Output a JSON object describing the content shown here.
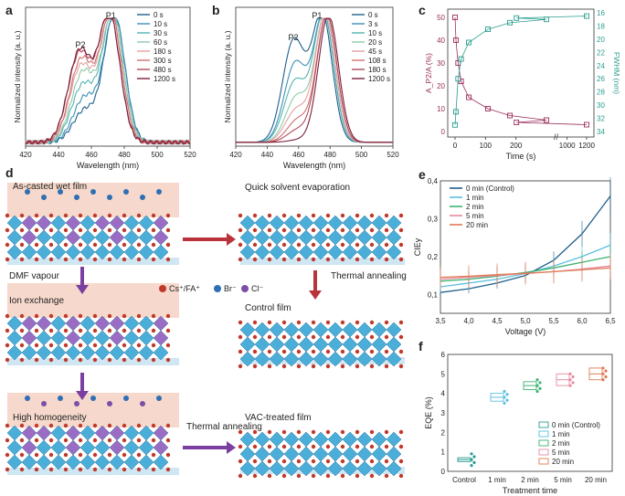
{
  "panel_labels": {
    "a": "a",
    "b": "b",
    "c": "c",
    "d": "d",
    "e": "e",
    "f": "f"
  },
  "colors": {
    "s0": "#1f5f8b",
    "s1": "#3a8fb7",
    "s2": "#55b3b0",
    "s3": "#8fc9a8",
    "s4": "#e5a0a0",
    "s5": "#d0706f",
    "s6": "#b04a5a",
    "s7": "#7a1f3d",
    "teal": "#2a9d8f",
    "maroon": "#9b2d5b",
    "cyan": "#5bc0de",
    "green": "#3cb371",
    "pink": "#e88aa0",
    "orange": "#e07b54"
  },
  "chart_data": [
    {
      "id": "a",
      "type": "line",
      "xlabel": "Wavelength (nm)",
      "ylabel": "Normalized intensity (a. u.)",
      "xlim": [
        420,
        520
      ],
      "xticks": [
        "420",
        "440",
        "460",
        "480",
        "500",
        "520"
      ],
      "annotations": [
        "P1",
        "P2"
      ],
      "series": [
        {
          "name": "0 s",
          "peak": 474,
          "shoulder": 0.25
        },
        {
          "name": "10 s",
          "peak": 474,
          "shoulder": 0.35
        },
        {
          "name": "30 s",
          "peak": 473,
          "shoulder": 0.45
        },
        {
          "name": "60 s",
          "peak": 473,
          "shoulder": 0.55
        },
        {
          "name": "180 s",
          "peak": 472,
          "shoulder": 0.6
        },
        {
          "name": "300 s",
          "peak": 472,
          "shoulder": 0.65
        },
        {
          "name": "480 s",
          "peak": 471,
          "shoulder": 0.7
        },
        {
          "name": "1200 s",
          "peak": 471,
          "shoulder": 0.72
        }
      ]
    },
    {
      "id": "b",
      "type": "line",
      "xlabel": "Wavelength (nm)",
      "ylabel": "Normalized intensity (a. u.)",
      "xlim": [
        420,
        520
      ],
      "xticks": [
        "420",
        "440",
        "460",
        "480",
        "500",
        "520"
      ],
      "annotations": [
        "P1",
        "P2"
      ],
      "series": [
        {
          "name": "0 s",
          "peak": 475,
          "shoulder": 0.8
        },
        {
          "name": "3 s",
          "peak": 476,
          "shoulder": 0.62
        },
        {
          "name": "10 s",
          "peak": 476,
          "shoulder": 0.48
        },
        {
          "name": "20 s",
          "peak": 477,
          "shoulder": 0.36
        },
        {
          "name": "45 s",
          "peak": 477,
          "shoulder": 0.26
        },
        {
          "name": "108 s",
          "peak": 478,
          "shoulder": 0.18
        },
        {
          "name": "180 s",
          "peak": 478,
          "shoulder": 0.1
        },
        {
          "name": "1200 s",
          "peak": 479,
          "shoulder": 0.02
        }
      ]
    },
    {
      "id": "c",
      "type": "scatter",
      "xlabel": "Time (s)",
      "ylabel_left": "A_P2/A (%)",
      "ylabel_right": "FWHM (nm)",
      "xticks": [
        "0",
        "100",
        "200",
        "1000",
        "1200"
      ],
      "yticks_left": [
        "0",
        "10",
        "20",
        "30",
        "40",
        "50"
      ],
      "yticks_right": [
        "16",
        "18",
        "20",
        "22",
        "24",
        "26",
        "28",
        "30",
        "32",
        "34"
      ],
      "series": [
        {
          "name": "A_P2/A",
          "x": [
            0,
            3,
            10,
            20,
            45,
            108,
            180,
            300,
            480,
            1200
          ],
          "y": [
            50,
            40,
            30,
            22,
            15,
            10,
            7,
            5,
            4,
            3
          ]
        },
        {
          "name": "FWHM",
          "x": [
            0,
            3,
            10,
            20,
            45,
            108,
            180,
            300,
            480,
            1200
          ],
          "y": [
            33,
            31,
            26,
            23,
            20.5,
            18.5,
            17.5,
            17,
            16.8,
            16.5
          ]
        }
      ]
    },
    {
      "id": "e",
      "type": "line",
      "xlabel": "Voltage (V)",
      "ylabel": "CIEy",
      "xlim": [
        3.5,
        6.5
      ],
      "ylim": [
        0.05,
        0.4
      ],
      "xticks": [
        "3,5",
        "4,0",
        "4,5",
        "5,0",
        "5,5",
        "6,0",
        "6,5"
      ],
      "yticks": [
        "0,1",
        "0,2",
        "0,3",
        "0,4"
      ],
      "series": [
        {
          "name": "0 min (Control)",
          "x": [
            3.5,
            4,
            4.5,
            5,
            5.5,
            6,
            6.5
          ],
          "y": [
            0.105,
            0.115,
            0.13,
            0.15,
            0.19,
            0.26,
            0.36
          ]
        },
        {
          "name": "1 min",
          "x": [
            3.5,
            4,
            4.5,
            5,
            5.5,
            6,
            6.5
          ],
          "y": [
            0.12,
            0.13,
            0.14,
            0.155,
            0.175,
            0.2,
            0.23
          ]
        },
        {
          "name": "2 min",
          "x": [
            3.5,
            4,
            4.5,
            5,
            5.5,
            6,
            6.5
          ],
          "y": [
            0.135,
            0.14,
            0.148,
            0.158,
            0.17,
            0.185,
            0.2
          ]
        },
        {
          "name": "5 min",
          "x": [
            3.5,
            4,
            4.5,
            5,
            5.5,
            6,
            6.5
          ],
          "y": [
            0.14,
            0.145,
            0.15,
            0.155,
            0.16,
            0.167,
            0.175
          ]
        },
        {
          "name": "20 min",
          "x": [
            3.5,
            4,
            4.5,
            5,
            5.5,
            6,
            6.5
          ],
          "y": [
            0.145,
            0.148,
            0.152,
            0.156,
            0.16,
            0.165,
            0.17
          ]
        }
      ]
    },
    {
      "id": "f",
      "type": "box",
      "xlabel": "Treatment time",
      "ylabel": "EQE (%)",
      "ylim": [
        0,
        6
      ],
      "yticks": [
        "0",
        "1",
        "2",
        "3",
        "4",
        "5",
        "6"
      ],
      "categories": [
        "Control",
        "1 min",
        "2 min",
        "5 min",
        "20 min"
      ],
      "series": [
        {
          "name": "0 min (Control)",
          "median": 0.6,
          "q1": 0.5,
          "q3": 0.7
        },
        {
          "name": "1 min",
          "median": 3.8,
          "q1": 3.6,
          "q3": 4.0
        },
        {
          "name": "2 min",
          "median": 4.4,
          "q1": 4.2,
          "q3": 4.6
        },
        {
          "name": "5 min",
          "median": 4.7,
          "q1": 4.4,
          "q3": 5.0
        },
        {
          "name": "20 min",
          "median": 5.0,
          "q1": 4.7,
          "q3": 5.3
        }
      ]
    }
  ],
  "schematic": {
    "step1": "As-casted wet film",
    "step2": "Quick solvent evaporation",
    "step3": "DMF vapour",
    "step4": "Ion exchange",
    "step5": "Thermal annealing",
    "step6": "Control film",
    "step7": "High homogeneity",
    "step8": "Thermal annealing",
    "step9": "VAC-treated film",
    "legend": [
      "Cs⁺/FA⁺",
      "Br⁻",
      "Cl⁻"
    ]
  }
}
